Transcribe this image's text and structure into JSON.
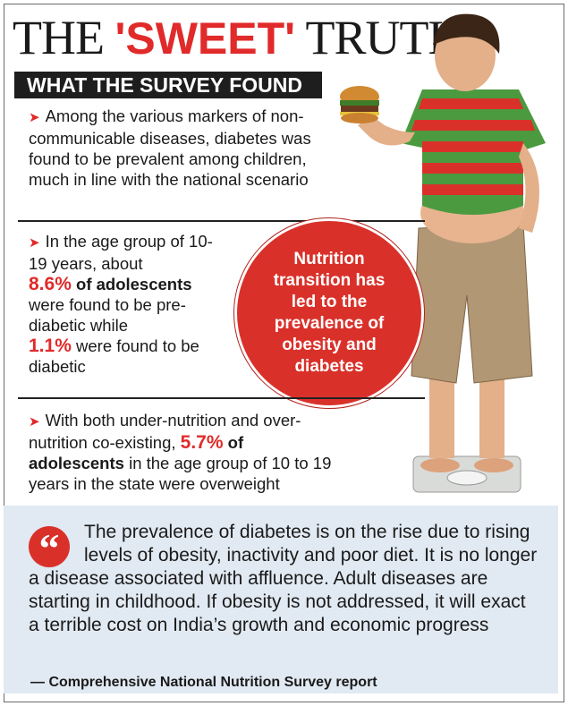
{
  "title": {
    "part1": "THE ",
    "highlight": "'SWEET'",
    "part2": " TRUTH"
  },
  "banner": "WHAT THE SURVEY FOUND",
  "bullet1": {
    "text": "Among the various markers of non-communicable diseases, diabetes was found to be prevalent among children, much in line with the national scenario"
  },
  "bullet2": {
    "t1": "In the age group of 10-19 years, about",
    "pct1": "8.6%",
    "t2": " of adolescents",
    "t3": "were found to be pre-diabetic while",
    "pct2": "1.1%",
    "t4": " were found to be diabetic"
  },
  "bullet3": {
    "t1": "With both under-nutrition and over-nutrition co-existing, ",
    "pct": "5.7%",
    "t2": " of adolescents",
    "t3": " in the age group of 10 to 19 years in the state were overweight"
  },
  "circle_text": "Nutrition transition has led to the prevalence of obesity and diabetes",
  "quote": "The prevalence of diabetes is on the rise due to rising levels of obesity, inactivity and poor diet. It is no longer a disease associated with affluence. Adult diseases are starting in childhood. If obesity is not addressed, it will exact a terrible cost on India’s growth and economic progress",
  "source": "— Comprehensive National Nutrition Survey report",
  "icons": {
    "bullet": "red-arrow-icon",
    "quote": "quotation-mark-icon"
  },
  "colors": {
    "accent": "#e12a2a",
    "banner": "#1e1e1e",
    "quote_bg": "#e1e9f2"
  }
}
